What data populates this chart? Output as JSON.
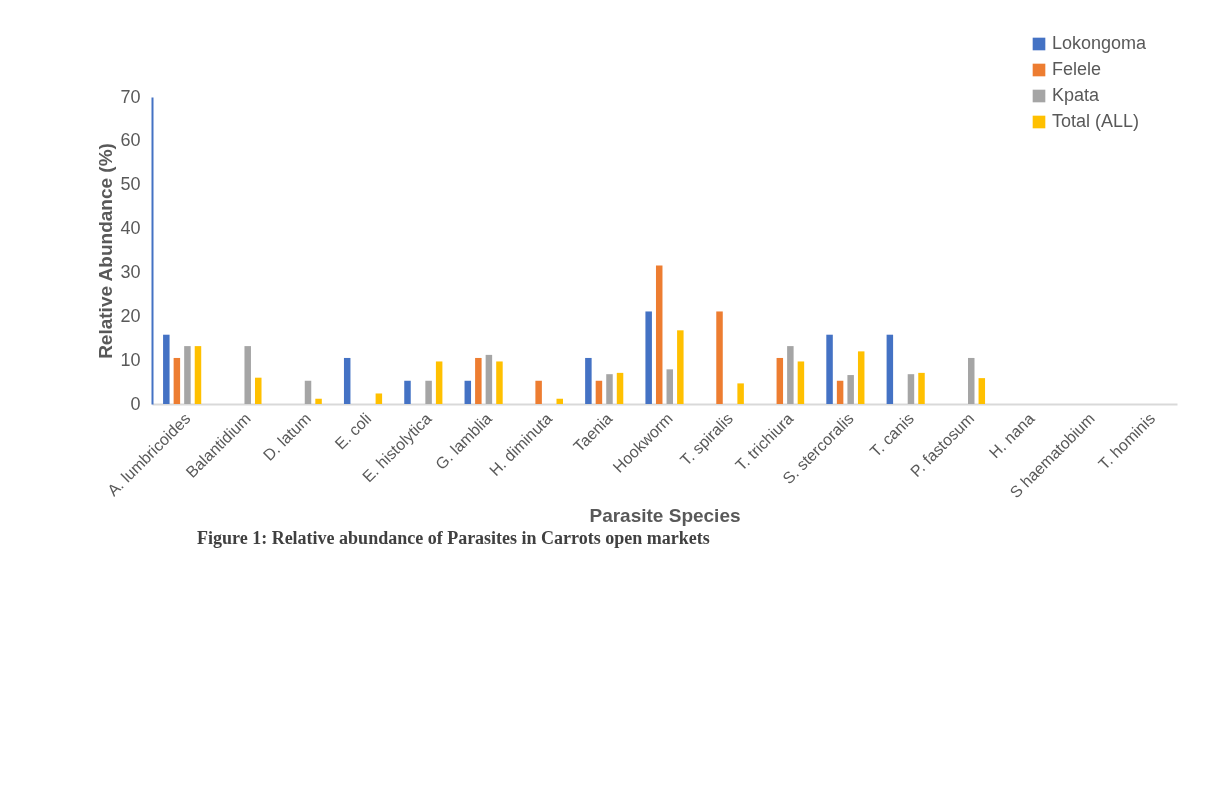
{
  "chart_data": {
    "type": "bar",
    "xlabel": "Parasite Species",
    "ylabel": "Relative Abundance (%)",
    "annotations": [
      "Figure 1: Relative abundance of Parasites in Carrots open markets"
    ],
    "categories": [
      "A. lumbricoides",
      "Balantidium",
      "D. latum",
      "E. coli",
      "E. histolytica",
      "G. lamblia",
      "H. diminuta",
      "Taenia",
      "Hookworm",
      "T. spiralis",
      "T. trichiura",
      "S. stercoralis",
      "T. canis",
      "P. fastosum",
      "H. nana",
      "S haematobium",
      "T. hominis"
    ],
    "series": [
      {
        "name": "Lokongoma",
        "color": "#4472c4",
        "values": [
          15.8,
          null,
          null,
          10.5,
          5.3,
          5.3,
          null,
          10.5,
          21.1,
          null,
          null,
          15.8,
          15.8,
          null,
          null,
          null,
          null
        ]
      },
      {
        "name": "Felele",
        "color": "#ed7d31",
        "values": [
          10.5,
          null,
          null,
          null,
          null,
          10.5,
          5.3,
          5.3,
          31.6,
          21.1,
          10.5,
          5.3,
          null,
          null,
          null,
          null,
          null
        ]
      },
      {
        "name": "Kpata",
        "color": "#a5a5a5",
        "values": [
          13.2,
          13.2,
          5.3,
          null,
          5.3,
          11.2,
          null,
          6.8,
          7.9,
          null,
          13.2,
          6.6,
          6.8,
          10.5,
          null,
          null,
          null
        ]
      },
      {
        "name": "Total (ALL)",
        "color": "#ffc000",
        "values": [
          13.2,
          6.0,
          1.2,
          2.4,
          9.7,
          9.7,
          1.2,
          7.1,
          16.8,
          4.7,
          9.7,
          12.0,
          7.1,
          5.9,
          null,
          null,
          null
        ]
      }
    ],
    "ylim": [
      0,
      70
    ],
    "yticks": [
      0,
      10,
      20,
      30,
      40,
      50,
      60,
      70
    ],
    "grid": false,
    "legend": "top right"
  }
}
